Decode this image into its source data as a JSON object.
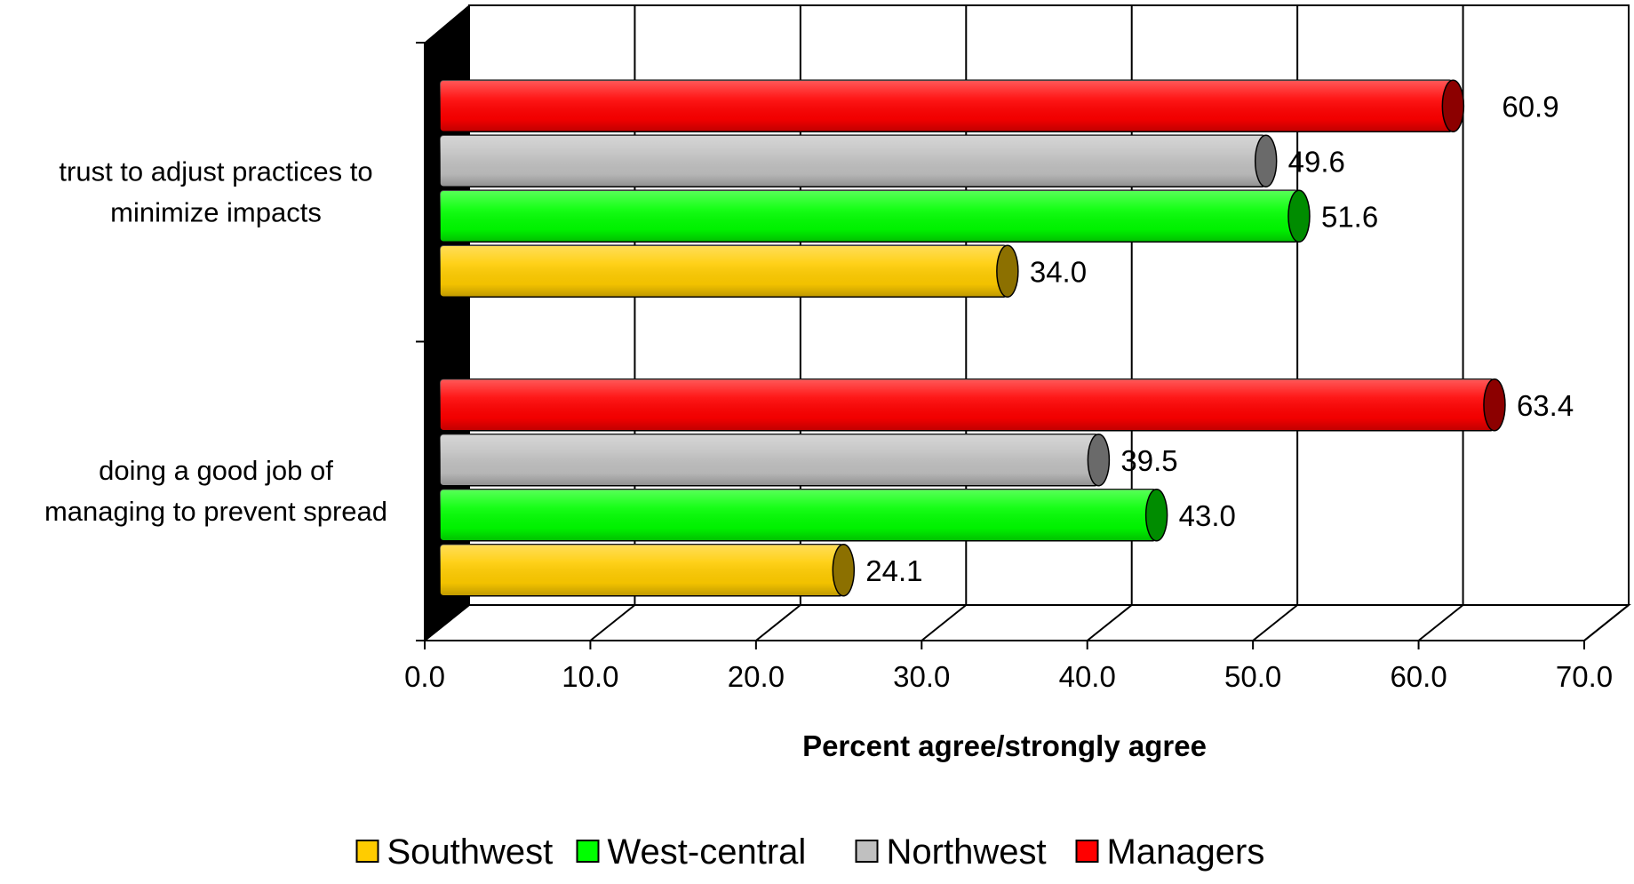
{
  "chart_data": {
    "type": "bar",
    "orientation": "horizontal",
    "style": "3d-cylinder",
    "categories": [
      "trust to adjust practices to minimize impacts",
      "doing a good job of managing to prevent spread"
    ],
    "category_lines": [
      [
        "trust to adjust practices to",
        "minimize impacts"
      ],
      [
        "doing a good job of",
        "managing to prevent spread"
      ]
    ],
    "series": [
      {
        "name": "Managers",
        "color": "#ff0000",
        "values": [
          60.9,
          63.4
        ],
        "labels": [
          "60.9",
          "63.4"
        ]
      },
      {
        "name": "Northwest",
        "color": "#c0c0c0",
        "values": [
          49.6,
          39.5
        ],
        "labels": [
          "49.6",
          "39.5"
        ]
      },
      {
        "name": "West-central",
        "color": "#00ff00",
        "values": [
          51.6,
          43.0
        ],
        "labels": [
          "51.6",
          "43.0"
        ]
      },
      {
        "name": "Southwest",
        "color": "#ffcc00",
        "values": [
          34.0,
          24.1
        ],
        "labels": [
          "34.0",
          "24.1"
        ]
      }
    ],
    "xlim": [
      0,
      70
    ],
    "xticks": [
      "0.0",
      "10.0",
      "20.0",
      "30.0",
      "40.0",
      "50.0",
      "60.0",
      "70.0"
    ],
    "xlabel": "Percent agree/strongly agree",
    "ylabel": "",
    "title": "",
    "grid": "vertical",
    "legend": {
      "position": "bottom",
      "entries": [
        "Southwest",
        "West-central",
        "Northwest",
        "Managers"
      ],
      "colors": [
        "#ffcc00",
        "#00ff00",
        "#c0c0c0",
        "#ff0000"
      ]
    }
  }
}
